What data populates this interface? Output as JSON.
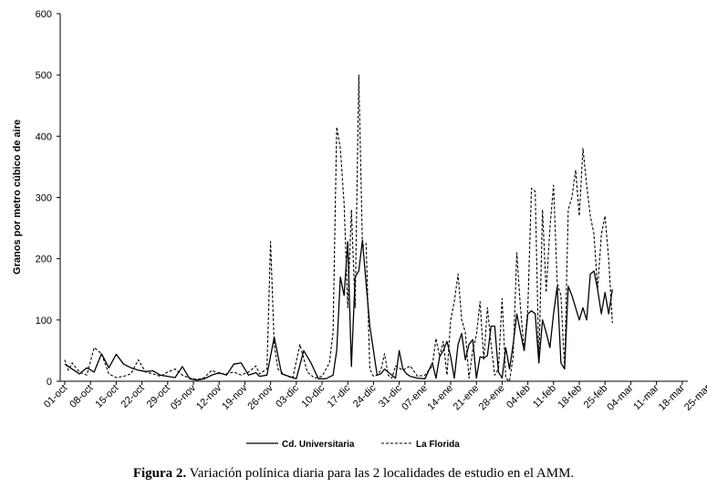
{
  "chart_data": {
    "type": "line",
    "ylabel": "Granos por metro cúbico de aire",
    "xlabel": "",
    "ylim": [
      0,
      600
    ],
    "yticks": [
      0,
      100,
      200,
      300,
      400,
      500,
      600
    ],
    "x_tick_labels": [
      "01-oct",
      "08-oct",
      "15-oct",
      "22-oct",
      "29-oct",
      "05-nov",
      "12-nov",
      "19-nov",
      "26-nov",
      "03-dic",
      "10-dic",
      "17-dic",
      "24-dic",
      "31-dic",
      "07-ene",
      "14-ene",
      "21-ene",
      "28-ene",
      "04-feb",
      "11-feb",
      "18-feb",
      "25-feb",
      "04-mar",
      "11-mar",
      "18-mar",
      "25-mar"
    ],
    "x_tick_step_days": 7,
    "grid": false,
    "legend_position": "bottom",
    "series": [
      {
        "name": "Cd. Universitaria",
        "style": "solid",
        "color": "#000000",
        "points": [
          [
            0,
            28
          ],
          [
            2,
            20
          ],
          [
            4,
            12
          ],
          [
            6,
            22
          ],
          [
            8,
            15
          ],
          [
            10,
            45
          ],
          [
            12,
            22
          ],
          [
            14,
            44
          ],
          [
            16,
            28
          ],
          [
            18,
            22
          ],
          [
            20,
            18
          ],
          [
            22,
            16
          ],
          [
            24,
            17
          ],
          [
            26,
            10
          ],
          [
            28,
            8
          ],
          [
            30,
            6
          ],
          [
            32,
            24
          ],
          [
            34,
            4
          ],
          [
            36,
            2
          ],
          [
            38,
            4
          ],
          [
            40,
            10
          ],
          [
            42,
            14
          ],
          [
            44,
            10
          ],
          [
            46,
            28
          ],
          [
            48,
            30
          ],
          [
            50,
            10
          ],
          [
            52,
            14
          ],
          [
            53,
            8
          ],
          [
            55,
            10
          ],
          [
            57,
            72
          ],
          [
            59,
            12
          ],
          [
            61,
            8
          ],
          [
            63,
            4
          ],
          [
            65,
            50
          ],
          [
            67,
            30
          ],
          [
            69,
            4
          ],
          [
            71,
            4
          ],
          [
            73,
            10
          ],
          [
            74,
            50
          ],
          [
            75,
            170
          ],
          [
            76,
            140
          ],
          [
            77,
            228
          ],
          [
            78,
            24
          ],
          [
            79,
            170
          ],
          [
            80,
            180
          ],
          [
            81,
            230
          ],
          [
            82,
            160
          ],
          [
            83,
            90
          ],
          [
            84,
            50
          ],
          [
            85,
            10
          ],
          [
            86,
            12
          ],
          [
            87,
            20
          ],
          [
            88,
            15
          ],
          [
            89,
            10
          ],
          [
            90,
            5
          ],
          [
            91,
            50
          ],
          [
            92,
            20
          ],
          [
            93,
            12
          ],
          [
            94,
            8
          ],
          [
            96,
            5
          ],
          [
            98,
            4
          ],
          [
            100,
            30
          ],
          [
            101,
            5
          ],
          [
            102,
            40
          ],
          [
            103,
            50
          ],
          [
            104,
            65
          ],
          [
            105,
            40
          ],
          [
            106,
            5
          ],
          [
            107,
            60
          ],
          [
            108,
            78
          ],
          [
            109,
            35
          ],
          [
            110,
            60
          ],
          [
            111,
            68
          ],
          [
            112,
            5
          ],
          [
            113,
            40
          ],
          [
            114,
            38
          ],
          [
            115,
            42
          ],
          [
            116,
            90
          ],
          [
            117,
            90
          ],
          [
            118,
            15
          ],
          [
            119,
            5
          ],
          [
            120,
            55
          ],
          [
            121,
            20
          ],
          [
            122,
            60
          ],
          [
            123,
            110
          ],
          [
            124,
            80
          ],
          [
            125,
            50
          ],
          [
            126,
            110
          ],
          [
            127,
            115
          ],
          [
            128,
            110
          ],
          [
            129,
            30
          ],
          [
            130,
            100
          ],
          [
            131,
            80
          ],
          [
            132,
            55
          ],
          [
            133,
            110
          ],
          [
            134,
            155
          ],
          [
            135,
            30
          ],
          [
            136,
            20
          ],
          [
            137,
            155
          ],
          [
            138,
            140
          ],
          [
            139,
            120
          ],
          [
            140,
            100
          ],
          [
            141,
            120
          ],
          [
            142,
            100
          ],
          [
            143,
            175
          ],
          [
            144,
            180
          ],
          [
            145,
            150
          ],
          [
            146,
            110
          ],
          [
            147,
            145
          ],
          [
            148,
            110
          ],
          [
            149,
            150
          ]
        ]
      },
      {
        "name": "La Florida",
        "style": "dashed",
        "color": "#000000",
        "points": [
          [
            0,
            35
          ],
          [
            1,
            18
          ],
          [
            2,
            30
          ],
          [
            4,
            15
          ],
          [
            6,
            10
          ],
          [
            8,
            55
          ],
          [
            10,
            45
          ],
          [
            12,
            12
          ],
          [
            14,
            6
          ],
          [
            16,
            8
          ],
          [
            18,
            12
          ],
          [
            20,
            35
          ],
          [
            22,
            15
          ],
          [
            24,
            12
          ],
          [
            26,
            8
          ],
          [
            28,
            15
          ],
          [
            30,
            20
          ],
          [
            32,
            10
          ],
          [
            34,
            5
          ],
          [
            36,
            3
          ],
          [
            38,
            6
          ],
          [
            40,
            18
          ],
          [
            42,
            12
          ],
          [
            44,
            12
          ],
          [
            46,
            15
          ],
          [
            48,
            10
          ],
          [
            50,
            15
          ],
          [
            52,
            25
          ],
          [
            53,
            12
          ],
          [
            55,
            20
          ],
          [
            56,
            228
          ],
          [
            57,
            60
          ],
          [
            58,
            20
          ],
          [
            60,
            10
          ],
          [
            62,
            5
          ],
          [
            64,
            60
          ],
          [
            66,
            15
          ],
          [
            68,
            5
          ],
          [
            70,
            8
          ],
          [
            72,
            30
          ],
          [
            73,
            80
          ],
          [
            74,
            415
          ],
          [
            75,
            380
          ],
          [
            76,
            290
          ],
          [
            77,
            120
          ],
          [
            78,
            280
          ],
          [
            79,
            120
          ],
          [
            80,
            500
          ],
          [
            81,
            220
          ],
          [
            82,
            225
          ],
          [
            83,
            20
          ],
          [
            84,
            8
          ],
          [
            85,
            10
          ],
          [
            86,
            18
          ],
          [
            87,
            45
          ],
          [
            88,
            10
          ],
          [
            89,
            5
          ],
          [
            90,
            25
          ],
          [
            92,
            18
          ],
          [
            94,
            25
          ],
          [
            96,
            8
          ],
          [
            98,
            10
          ],
          [
            100,
            25
          ],
          [
            101,
            70
          ],
          [
            102,
            40
          ],
          [
            103,
            65
          ],
          [
            104,
            10
          ],
          [
            105,
            100
          ],
          [
            106,
            130
          ],
          [
            107,
            175
          ],
          [
            108,
            100
          ],
          [
            109,
            80
          ],
          [
            110,
            5
          ],
          [
            111,
            50
          ],
          [
            112,
            75
          ],
          [
            113,
            130
          ],
          [
            114,
            35
          ],
          [
            115,
            120
          ],
          [
            116,
            60
          ],
          [
            117,
            10
          ],
          [
            118,
            20
          ],
          [
            119,
            135
          ],
          [
            120,
            5
          ],
          [
            121,
            0
          ],
          [
            122,
            40
          ],
          [
            123,
            210
          ],
          [
            124,
            120
          ],
          [
            125,
            50
          ],
          [
            126,
            120
          ],
          [
            127,
            315
          ],
          [
            128,
            310
          ],
          [
            129,
            30
          ],
          [
            130,
            280
          ],
          [
            131,
            145
          ],
          [
            132,
            250
          ],
          [
            133,
            320
          ],
          [
            134,
            160
          ],
          [
            135,
            140
          ],
          [
            136,
            20
          ],
          [
            137,
            280
          ],
          [
            138,
            300
          ],
          [
            139,
            345
          ],
          [
            140,
            270
          ],
          [
            141,
            380
          ],
          [
            142,
            320
          ],
          [
            143,
            270
          ],
          [
            144,
            240
          ],
          [
            145,
            150
          ],
          [
            146,
            240
          ],
          [
            147,
            270
          ],
          [
            148,
            200
          ],
          [
            149,
            95
          ]
        ]
      }
    ]
  },
  "caption": {
    "label": "Figura 2.",
    "text": " Variación polínica diaria para las 2 localidades de estudio en el AMM."
  }
}
